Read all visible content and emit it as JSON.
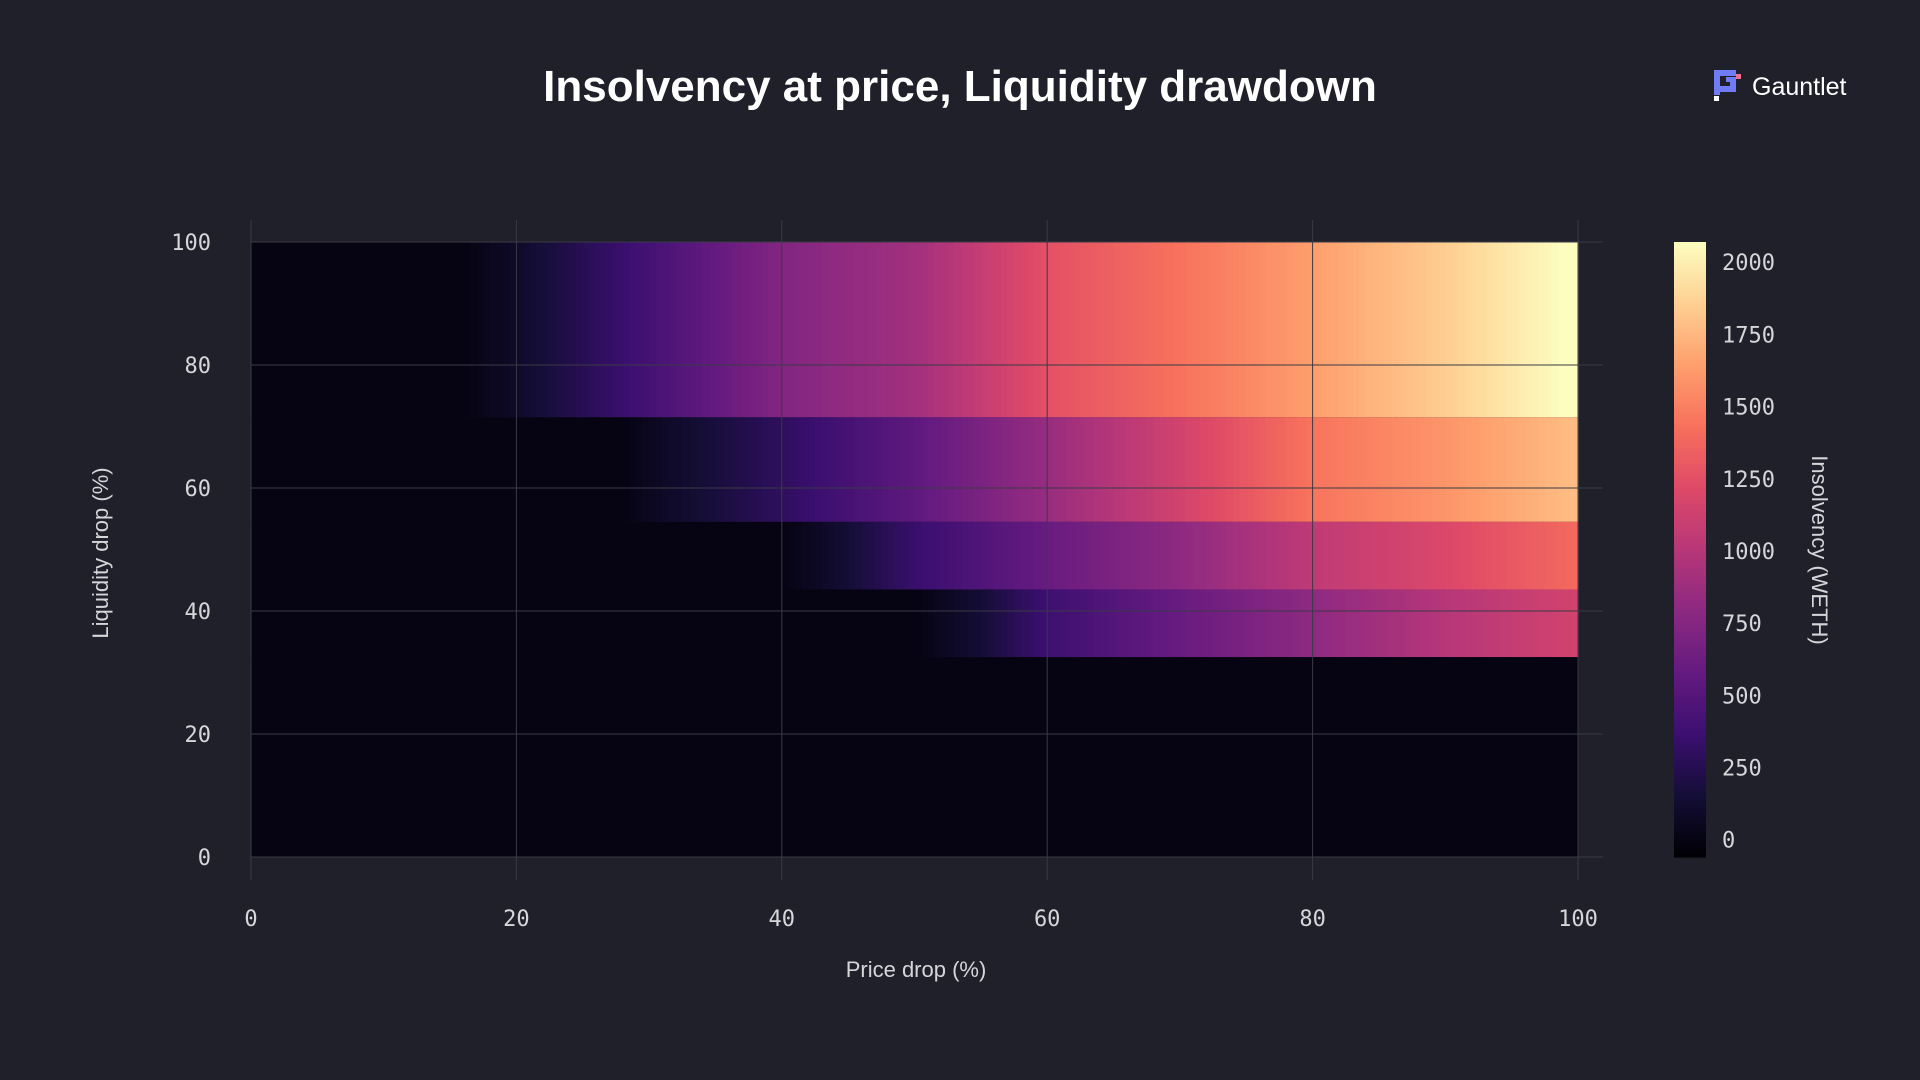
{
  "chart_data": {
    "type": "heatmap",
    "title": "Insolvency at price, Liquidity drawdown",
    "xlabel": "Price drop (%)",
    "ylabel": "Liquidity drop (%)",
    "colorbar_label": "Insolvency (WETH)",
    "xlim": [
      0,
      100
    ],
    "ylim": [
      0,
      100
    ],
    "x_ticks": [
      "0",
      "20",
      "40",
      "60",
      "80",
      "100"
    ],
    "y_ticks": [
      "0",
      "20",
      "40",
      "60",
      "80",
      "100"
    ],
    "colorbar_ticks": [
      "0",
      "250",
      "500",
      "750",
      "1000",
      "1250",
      "1500",
      "1750",
      "2000"
    ],
    "color_range": [
      -60,
      2070
    ],
    "colormap": "magma",
    "grid": true,
    "bands": [
      {
        "liquidity_range": [
          71.5,
          100
        ],
        "points": [
          [
            0,
            0
          ],
          [
            16,
            0
          ],
          [
            20,
            100
          ],
          [
            30,
            420
          ],
          [
            40,
            740
          ],
          [
            50,
            900
          ],
          [
            60,
            1260
          ],
          [
            70,
            1440
          ],
          [
            80,
            1640
          ],
          [
            90,
            1850
          ],
          [
            100,
            2100
          ]
        ]
      },
      {
        "liquidity_range": [
          54.5,
          71.5
        ],
        "points": [
          [
            0,
            0
          ],
          [
            28,
            0
          ],
          [
            30,
            60
          ],
          [
            40,
            300
          ],
          [
            50,
            550
          ],
          [
            60,
            850
          ],
          [
            70,
            1150
          ],
          [
            80,
            1450
          ],
          [
            90,
            1600
          ],
          [
            100,
            1780
          ]
        ]
      },
      {
        "liquidity_range": [
          43.5,
          54.5
        ],
        "points": [
          [
            0,
            0
          ],
          [
            40,
            0
          ],
          [
            45,
            150
          ],
          [
            50,
            350
          ],
          [
            60,
            600
          ],
          [
            70,
            800
          ],
          [
            80,
            1050
          ],
          [
            90,
            1200
          ],
          [
            100,
            1400
          ]
        ]
      },
      {
        "liquidity_range": [
          32.5,
          43.5
        ],
        "points": [
          [
            0,
            0
          ],
          [
            50,
            0
          ],
          [
            55,
            150
          ],
          [
            60,
            380
          ],
          [
            70,
            600
          ],
          [
            80,
            800
          ],
          [
            90,
            1000
          ],
          [
            100,
            1150
          ]
        ]
      },
      {
        "liquidity_range": [
          0,
          32.5
        ],
        "points": [
          [
            0,
            0
          ],
          [
            100,
            0
          ]
        ]
      }
    ]
  },
  "brand": {
    "name": "Gauntlet",
    "logo_colors": {
      "blue": "#6f7cf5",
      "pink": "#f0708e",
      "white": "#ffffff"
    }
  },
  "colors": {
    "background": "#20202a",
    "text": "#d6d6da"
  }
}
